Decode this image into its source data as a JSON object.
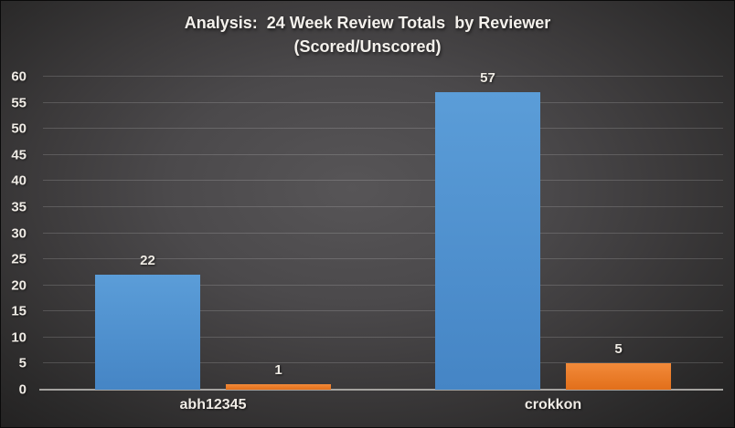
{
  "title": {
    "line1": "Analysis:  24 Week Review Totals  by Reviewer",
    "line2": "(Scored/Unscored)"
  },
  "chart_data": {
    "type": "bar",
    "title": "Analysis: 24 Week Review Totals by Reviewer (Scored/Unscored)",
    "categories": [
      "abh12345",
      "crokkon"
    ],
    "series": [
      {
        "name": "Scored",
        "color_top": "#5b9dd8",
        "color_bottom": "#4585c5",
        "values": [
          22,
          57
        ]
      },
      {
        "name": "Unscored",
        "color_top": "#f28a3a",
        "color_bottom": "#e26f1a",
        "values": [
          1,
          5
        ]
      }
    ],
    "ylim": [
      0,
      60
    ],
    "yticks": [
      0,
      5,
      10,
      15,
      20,
      25,
      30,
      35,
      40,
      45,
      50,
      55,
      60
    ],
    "grid": true,
    "legend": false,
    "show_value_labels": true
  },
  "colors": {
    "background_center": "#575557",
    "background_edge": "#201f1f",
    "gridline": "rgba(255,255,255,0.16)",
    "axis_line": "#a5a3a0",
    "text": "#f0ece6"
  }
}
